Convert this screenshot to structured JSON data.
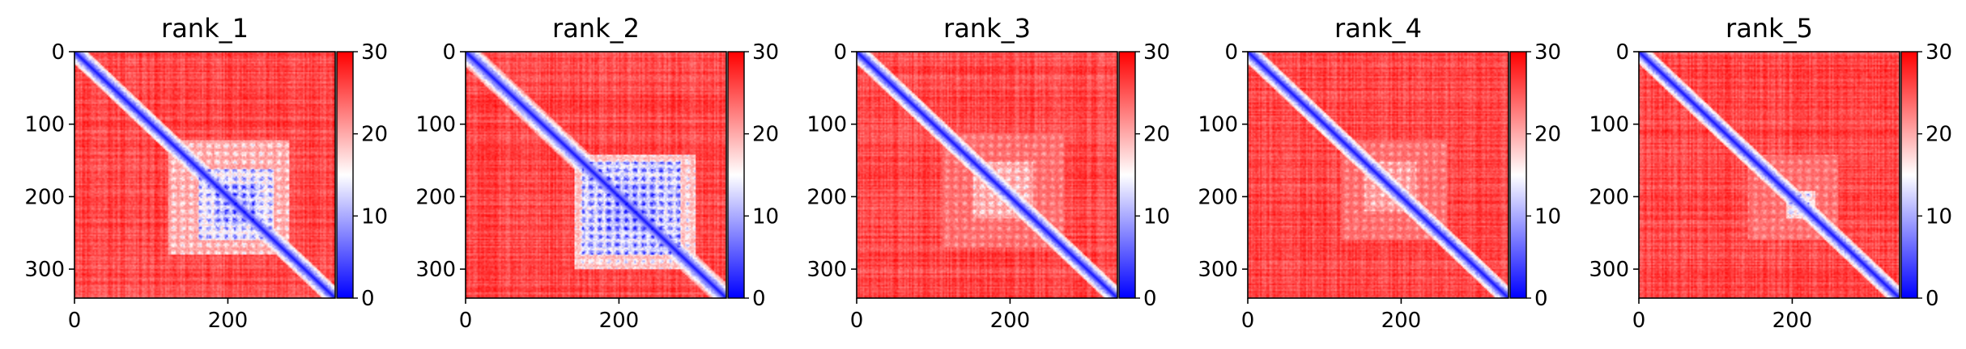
{
  "chart_data": {
    "type": "heatmap",
    "description_colormap": "bwr",
    "colormap_stops": [
      "#0000ff",
      "#ffffff",
      "#ff0000"
    ],
    "n_residues": 340,
    "colorbar": {
      "range": [
        0,
        30
      ],
      "ticks": [
        "0",
        "10",
        "20",
        "30"
      ]
    },
    "x_ticks": [
      "0",
      "200"
    ],
    "y_ticks": [
      "0",
      "100",
      "200",
      "300"
    ],
    "panels": [
      {
        "title": "rank_1",
        "blocks": [
          [
            120,
            280,
            0.55
          ],
          [
            160,
            260,
            0.85
          ],
          [
            180,
            240,
            1.0
          ]
        ],
        "diag_width": 6
      },
      {
        "title": "rank_2",
        "blocks": [
          [
            140,
            300,
            0.65
          ],
          [
            150,
            280,
            0.95
          ],
          [
            180,
            250,
            1.0
          ]
        ],
        "diag_width": 7
      },
      {
        "title": "rank_3",
        "blocks": [
          [
            110,
            270,
            0.35
          ],
          [
            150,
            230,
            0.55
          ]
        ],
        "diag_width": 6
      },
      {
        "title": "rank_4",
        "blocks": [
          [
            120,
            260,
            0.35
          ],
          [
            150,
            220,
            0.5
          ]
        ],
        "diag_width": 6
      },
      {
        "title": "rank_5",
        "blocks": [
          [
            140,
            260,
            0.35
          ],
          [
            190,
            230,
            0.75
          ]
        ],
        "diag_width": 6
      }
    ]
  }
}
